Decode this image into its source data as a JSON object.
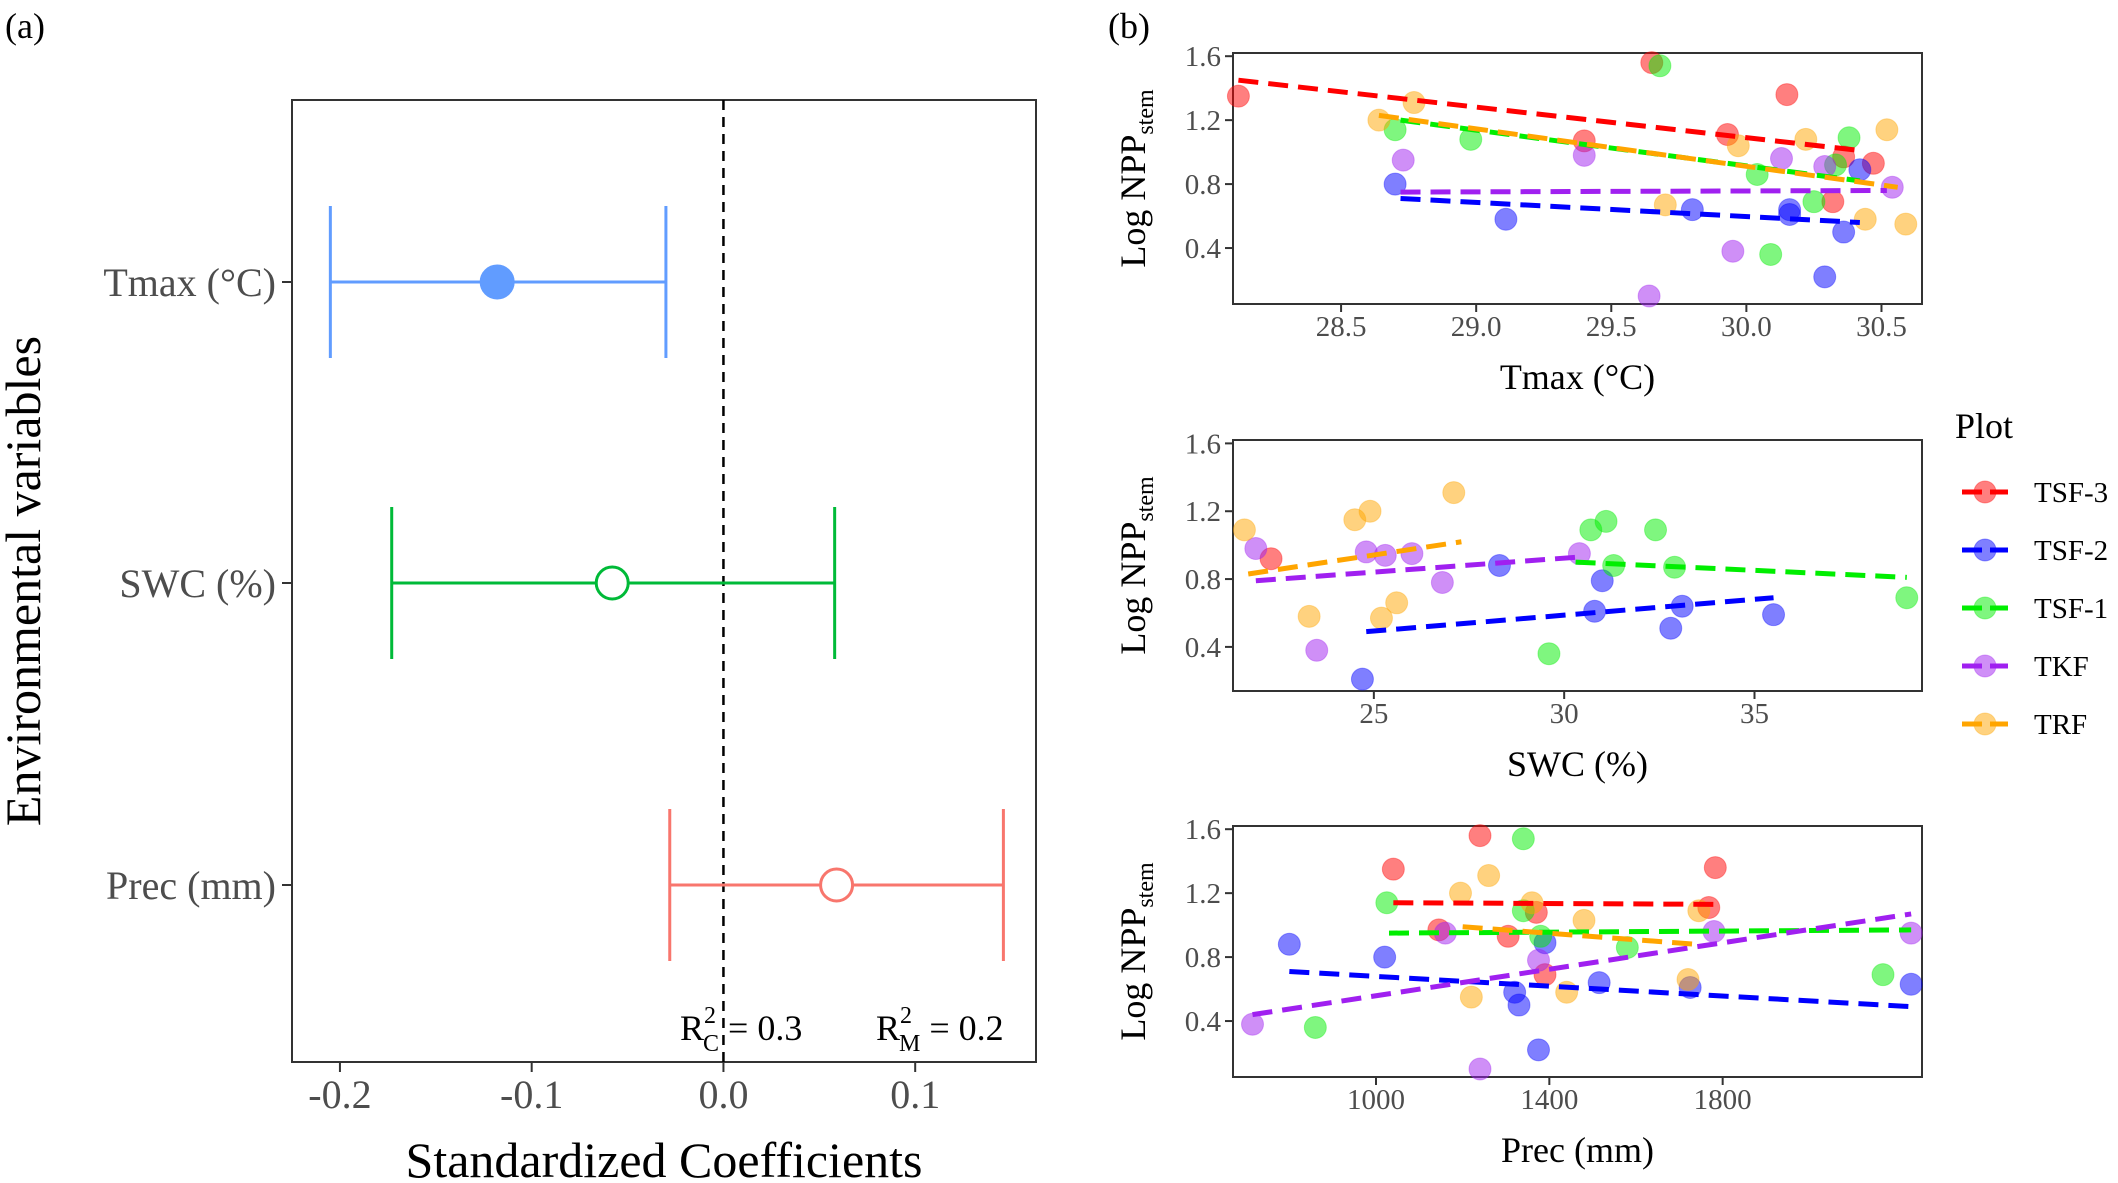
{
  "panels": {
    "a": "(a)",
    "b": "(b)"
  },
  "colors": {
    "TSF-3": "#ff0000",
    "TSF-2": "#0000ff",
    "TSF-1": "#00ee00",
    "TKF": "#a020f0",
    "TRF": "#ffa500",
    "coef_Tmax": "#619cff",
    "coef_SWC": "#00ba38",
    "coef_Prec": "#f8766d"
  },
  "legend": {
    "title": "Plot",
    "items": [
      "TSF-3",
      "TSF-2",
      "TSF-1",
      "TKF",
      "TRF"
    ]
  },
  "chart_data": [
    {
      "type": "forest",
      "panel": "(a)",
      "xlabel": "Standardized Coefficients",
      "ylabel": "Environmental variables",
      "xlim": [
        -0.225,
        0.163
      ],
      "xticks": [
        -0.2,
        -0.1,
        0.0,
        0.1
      ],
      "xtick_labels": [
        "-0.2",
        "-0.1",
        "0.0",
        "0.1"
      ],
      "reference_line": 0.0,
      "variables": [
        {
          "label": "Tmax (°C)",
          "estimate": -0.118,
          "lower": -0.205,
          "upper": -0.03,
          "significant": true,
          "color": "#619cff"
        },
        {
          "label": "SWC (%)",
          "estimate": -0.058,
          "lower": -0.173,
          "upper": 0.058,
          "significant": false,
          "color": "#00ba38"
        },
        {
          "label": "Prec (mm)",
          "estimate": 0.059,
          "lower": -0.028,
          "upper": 0.146,
          "significant": false,
          "color": "#f8766d"
        }
      ],
      "annotations": {
        "r2c_base": "R",
        "r2c_sup": "2",
        "r2c_sub": "C",
        "r2c_value": " = 0.3",
        "r2m_base": "R",
        "r2m_sup": "2",
        "r2m_sub": "M",
        "r2m_value": " = 0.2"
      }
    },
    {
      "type": "scatter",
      "panel": "(b) top",
      "xlabel": "Tmax (°C)",
      "ylabel_base": "Log NPP",
      "ylabel_sub": "stem",
      "xlim": [
        28.1,
        30.65
      ],
      "ylim": [
        0.05,
        1.62
      ],
      "xticks": [
        28.5,
        29.0,
        29.5,
        30.0,
        30.5
      ],
      "xtick_labels": [
        "28.5",
        "29.0",
        "29.5",
        "30.0",
        "30.5"
      ],
      "yticks": [
        0.4,
        0.8,
        1.2,
        1.6
      ],
      "ytick_labels": [
        "0.4",
        "0.8",
        "1.2",
        "1.6"
      ],
      "series": [
        {
          "name": "TSF-3",
          "points": [
            [
              28.12,
              1.35
            ],
            [
              29.4,
              1.07
            ],
            [
              29.65,
              1.56
            ],
            [
              29.93,
              1.11
            ],
            [
              30.15,
              1.36
            ],
            [
              30.32,
              0.69
            ],
            [
              30.36,
              0.97
            ],
            [
              30.47,
              0.93
            ]
          ],
          "line": [
            [
              28.12,
              1.45
            ],
            [
              30.42,
              1.01
            ]
          ]
        },
        {
          "name": "TSF-2",
          "points": [
            [
              28.7,
              0.8
            ],
            [
              29.11,
              0.58
            ],
            [
              29.8,
              0.64
            ],
            [
              30.16,
              0.61
            ],
            [
              30.29,
              0.22
            ],
            [
              30.36,
              0.5
            ],
            [
              30.42,
              0.89
            ],
            [
              30.16,
              0.64
            ]
          ],
          "line": [
            [
              28.72,
              0.71
            ],
            [
              30.42,
              0.56
            ]
          ]
        },
        {
          "name": "TSF-1",
          "points": [
            [
              28.7,
              1.14
            ],
            [
              28.98,
              1.08
            ],
            [
              29.68,
              1.54
            ],
            [
              30.04,
              0.86
            ],
            [
              30.09,
              0.36
            ],
            [
              30.25,
              0.69
            ],
            [
              30.38,
              1.09
            ],
            [
              30.33,
              0.92
            ]
          ],
          "line": [
            [
              28.72,
              1.2
            ],
            [
              30.42,
              0.82
            ]
          ]
        },
        {
          "name": "TKF",
          "points": [
            [
              28.73,
              0.95
            ],
            [
              29.4,
              0.98
            ],
            [
              29.64,
              0.1
            ],
            [
              29.95,
              0.38
            ],
            [
              30.13,
              0.96
            ],
            [
              30.29,
              0.91
            ],
            [
              30.54,
              0.78
            ]
          ],
          "line": [
            [
              28.72,
              0.75
            ],
            [
              30.52,
              0.76
            ]
          ]
        },
        {
          "name": "TRF",
          "points": [
            [
              28.64,
              1.2
            ],
            [
              28.77,
              1.31
            ],
            [
              29.7,
              0.67
            ],
            [
              29.97,
              1.04
            ],
            [
              30.22,
              1.08
            ],
            [
              30.44,
              0.58
            ],
            [
              30.52,
              1.14
            ],
            [
              30.59,
              0.55
            ]
          ],
          "line": [
            [
              28.64,
              1.23
            ],
            [
              30.56,
              0.78
            ]
          ]
        }
      ]
    },
    {
      "type": "scatter",
      "panel": "(b) middle",
      "xlabel": "SWC (%)",
      "ylabel_base": "Log NPP",
      "ylabel_sub": "stem",
      "xlim": [
        21.3,
        39.4
      ],
      "ylim": [
        0.14,
        1.62
      ],
      "xticks": [
        25,
        30,
        35
      ],
      "xtick_labels": [
        "25",
        "30",
        "35"
      ],
      "yticks": [
        0.4,
        0.8,
        1.2,
        1.6
      ],
      "ytick_labels": [
        "0.4",
        "0.8",
        "1.2",
        "1.6"
      ],
      "series": [
        {
          "name": "TSF-3",
          "points": [
            [
              22.3,
              0.92
            ]
          ],
          "line": []
        },
        {
          "name": "TSF-2",
          "points": [
            [
              24.7,
              0.21
            ],
            [
              28.3,
              0.88
            ],
            [
              30.8,
              0.61
            ],
            [
              31.0,
              0.79
            ],
            [
              32.8,
              0.51
            ],
            [
              33.1,
              0.64
            ],
            [
              35.5,
              0.59
            ]
          ],
          "line": [
            [
              24.8,
              0.49
            ],
            [
              35.5,
              0.69
            ]
          ]
        },
        {
          "name": "TSF-1",
          "points": [
            [
              29.6,
              0.36
            ],
            [
              30.7,
              1.09
            ],
            [
              31.1,
              1.14
            ],
            [
              31.3,
              0.88
            ],
            [
              32.4,
              1.09
            ],
            [
              32.9,
              0.87
            ],
            [
              39.0,
              0.69
            ]
          ],
          "line": [
            [
              30.3,
              0.9
            ],
            [
              39.0,
              0.81
            ]
          ]
        },
        {
          "name": "TKF",
          "points": [
            [
              21.9,
              0.98
            ],
            [
              23.5,
              0.38
            ],
            [
              24.8,
              0.96
            ],
            [
              25.3,
              0.94
            ],
            [
              26.0,
              0.95
            ],
            [
              26.8,
              0.78
            ],
            [
              30.4,
              0.95
            ]
          ],
          "line": [
            [
              21.9,
              0.79
            ],
            [
              30.4,
              0.93
            ]
          ]
        },
        {
          "name": "TRF",
          "points": [
            [
              21.6,
              1.09
            ],
            [
              23.3,
              0.58
            ],
            [
              24.5,
              1.15
            ],
            [
              24.9,
              1.2
            ],
            [
              25.2,
              0.57
            ],
            [
              25.6,
              0.66
            ],
            [
              27.1,
              1.31
            ]
          ],
          "line": [
            [
              21.7,
              0.83
            ],
            [
              27.3,
              1.02
            ]
          ]
        }
      ]
    },
    {
      "type": "scatter",
      "panel": "(b) bottom",
      "xlabel": "Prec (mm)",
      "ylabel_base": "Log NPP",
      "ylabel_sub": "stem",
      "xlim": [
        670,
        2260
      ],
      "ylim": [
        0.05,
        1.62
      ],
      "xticks": [
        1000,
        1400,
        1800
      ],
      "xtick_labels": [
        "1000",
        "1400",
        "1800"
      ],
      "yticks": [
        0.4,
        0.8,
        1.2,
        1.6
      ],
      "ytick_labels": [
        "0.4",
        "0.8",
        "1.2",
        "1.6"
      ],
      "series": [
        {
          "name": "TSF-3",
          "points": [
            [
              1040,
              1.35
            ],
            [
              1145,
              0.97
            ],
            [
              1240,
              1.56
            ],
            [
              1305,
              0.93
            ],
            [
              1370,
              1.08
            ],
            [
              1390,
              0.69
            ],
            [
              1768,
              1.11
            ],
            [
              1783,
              1.36
            ]
          ],
          "line": [
            [
              1040,
              1.14
            ],
            [
              1790,
              1.13
            ]
          ]
        },
        {
          "name": "TSF-2",
          "points": [
            [
              800,
              0.88
            ],
            [
              1020,
              0.8
            ],
            [
              1320,
              0.58
            ],
            [
              1330,
              0.5
            ],
            [
              1375,
              0.22
            ],
            [
              1390,
              0.89
            ],
            [
              1515,
              0.64
            ],
            [
              1725,
              0.61
            ],
            [
              2235,
              0.63
            ]
          ],
          "line": [
            [
              800,
              0.71
            ],
            [
              2235,
              0.49
            ]
          ]
        },
        {
          "name": "TSF-1",
          "points": [
            [
              860,
              0.36
            ],
            [
              1025,
              1.14
            ],
            [
              1340,
              1.54
            ],
            [
              1340,
              1.09
            ],
            [
              1380,
              0.93
            ],
            [
              1580,
              0.86
            ],
            [
              2170,
              0.69
            ]
          ],
          "line": [
            [
              1030,
              0.95
            ],
            [
              2235,
              0.97
            ]
          ]
        },
        {
          "name": "TKF",
          "points": [
            [
              715,
              0.38
            ],
            [
              1160,
              0.95
            ],
            [
              1240,
              0.1
            ],
            [
              1375,
              0.78
            ],
            [
              1780,
              0.96
            ],
            [
              2235,
              0.95
            ]
          ],
          "line": [
            [
              715,
              0.44
            ],
            [
              2235,
              1.07
            ]
          ]
        },
        {
          "name": "TRF",
          "points": [
            [
              1195,
              1.2
            ],
            [
              1220,
              0.55
            ],
            [
              1260,
              1.31
            ],
            [
              1360,
              1.14
            ],
            [
              1440,
              0.58
            ],
            [
              1480,
              1.03
            ],
            [
              1720,
              0.66
            ],
            [
              1745,
              1.09
            ]
          ],
          "line": [
            [
              1200,
              0.99
            ],
            [
              1740,
              0.88
            ]
          ]
        }
      ]
    }
  ]
}
